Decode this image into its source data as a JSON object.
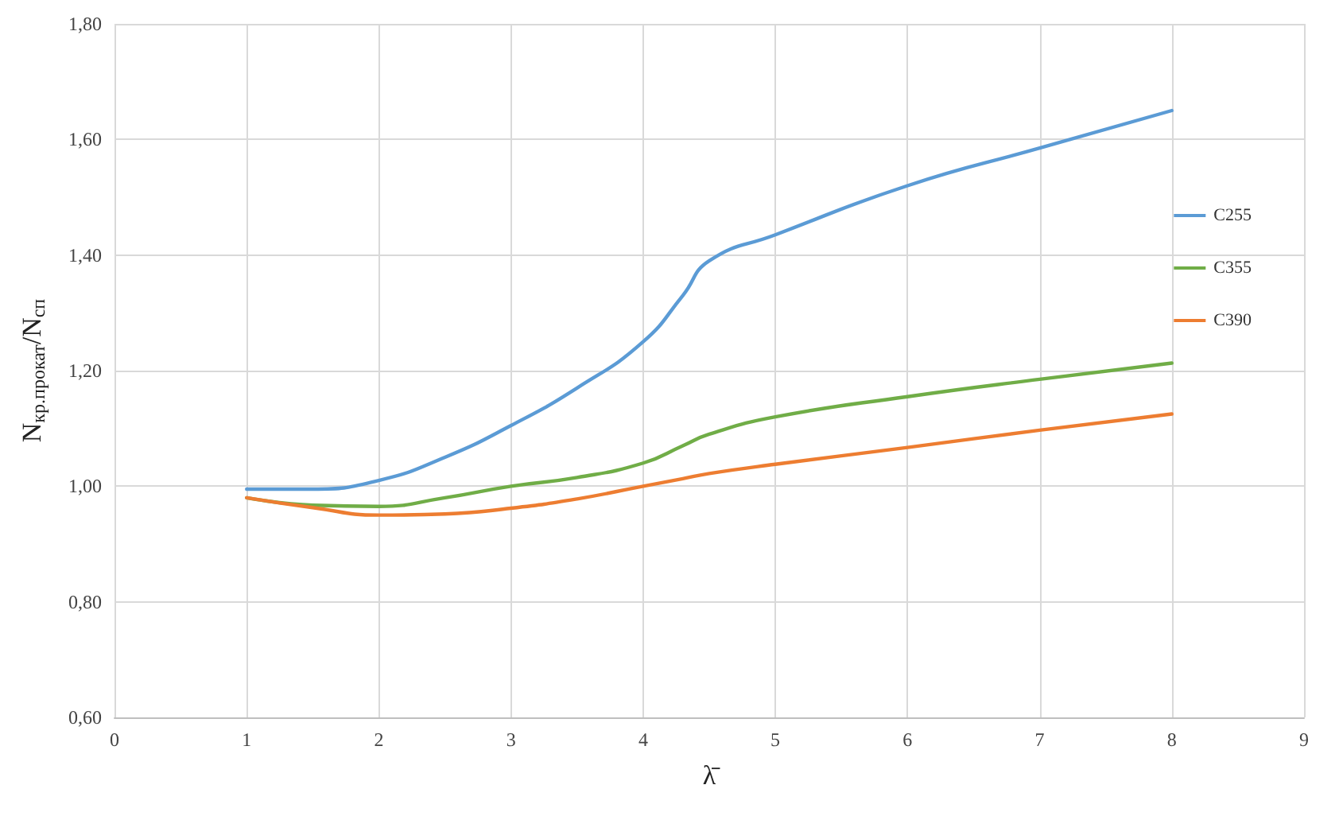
{
  "chart_data": {
    "type": "line",
    "xlabel": "λ̄",
    "ylabel": "N$_{кр.прокат}$/N$_{сп}$",
    "xlim": [
      0,
      9
    ],
    "xticks": [
      0,
      1,
      2,
      3,
      4,
      5,
      6,
      7,
      8,
      9
    ],
    "ylim": [
      0.6,
      1.8
    ],
    "yticks": [
      {
        "value": 0.6,
        "label": "0,60"
      },
      {
        "value": 0.8,
        "label": "0,80"
      },
      {
        "value": 1.0,
        "label": "1,00"
      },
      {
        "value": 1.2,
        "label": "1,20"
      },
      {
        "value": 1.4,
        "label": "1,40"
      },
      {
        "value": 1.6,
        "label": "1,60"
      },
      {
        "value": 1.8,
        "label": "1,80"
      }
    ],
    "x": [
      1,
      1.5,
      2,
      2.5,
      3,
      3.5,
      4,
      4.3,
      4.5,
      5,
      6,
      7,
      8
    ],
    "series": [
      {
        "name": "C255",
        "color": "#5b9bd5",
        "values": [
          0.995,
          0.995,
          1.01,
          1.05,
          1.105,
          1.17,
          1.25,
          1.33,
          1.39,
          1.435,
          1.52,
          1.585,
          1.65
        ]
      },
      {
        "name": "C355",
        "color": "#70ad47",
        "values": [
          0.98,
          0.967,
          0.965,
          0.98,
          1.0,
          1.015,
          1.04,
          1.07,
          1.09,
          1.12,
          1.155,
          1.185,
          1.213
        ]
      },
      {
        "name": "C390",
        "color": "#ed7d31",
        "values": [
          0.98,
          0.963,
          0.95,
          0.952,
          0.962,
          0.978,
          1.0,
          1.013,
          1.022,
          1.038,
          1.067,
          1.097,
          1.125
        ]
      }
    ],
    "grid": true,
    "legend": "right",
    "marker": "none",
    "line_style": "solid"
  }
}
